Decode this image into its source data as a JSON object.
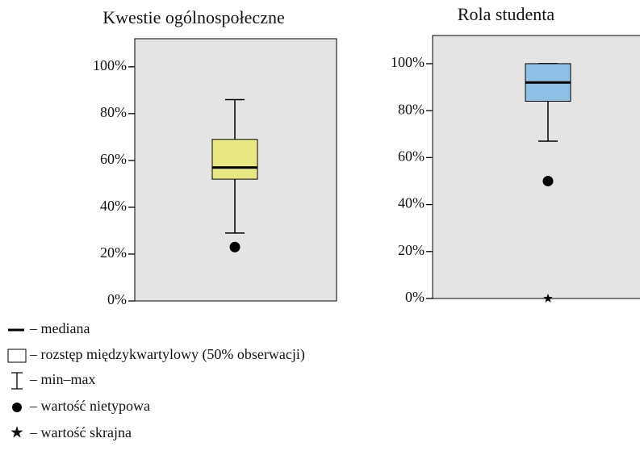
{
  "chart_data": [
    {
      "type": "box",
      "title": "Kwestie ogólnospołeczne",
      "color": "#e8e883",
      "min": 29,
      "q1": 52,
      "median": 57,
      "q3": 69,
      "max": 86,
      "outliers": [
        23
      ],
      "ylim": [
        0,
        112
      ],
      "yticks": [
        {
          "value": 0,
          "label": "0%"
        },
        {
          "value": 20,
          "label": "20%"
        },
        {
          "value": 40,
          "label": "40%"
        },
        {
          "value": 60,
          "label": "60%"
        },
        {
          "value": 80,
          "label": "80%"
        },
        {
          "value": 100,
          "label": "100%"
        }
      ]
    },
    {
      "type": "box",
      "title": "Rola studenta",
      "color": "#8fc0e6",
      "min": 67,
      "q1": 84,
      "median": 92,
      "q3": 100,
      "max": 100,
      "outliers": [
        50
      ],
      "extremes": [
        0
      ],
      "ylim": [
        0,
        112
      ],
      "yticks": [
        {
          "value": 0,
          "label": "0%"
        },
        {
          "value": 20,
          "label": "20%"
        },
        {
          "value": 40,
          "label": "40%"
        },
        {
          "value": 60,
          "label": "60%"
        },
        {
          "value": 80,
          "label": "80%"
        },
        {
          "value": 100,
          "label": "100%"
        }
      ]
    }
  ],
  "legend": [
    "– mediana",
    "– rozstęp międzykwartylowy (50% obserwacji)",
    "– min–max",
    "– wartość nietypowa",
    "– wartość skrajna"
  ]
}
